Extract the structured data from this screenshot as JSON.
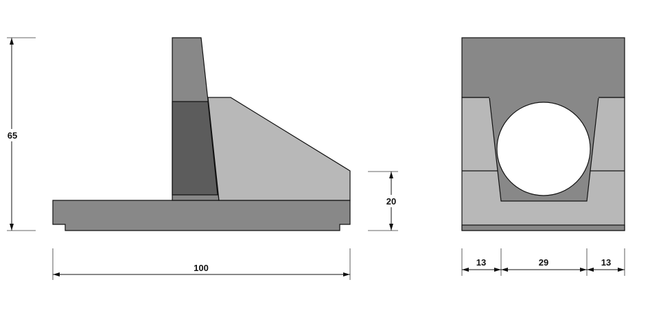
{
  "colors": {
    "mid_gray": "#888888",
    "dark_gray": "#5c5c5c",
    "light_gray": "#b8b8b8",
    "line": "#111111"
  },
  "side_view": {
    "dimensions": {
      "height": "65",
      "footing_height": "20",
      "width": "100"
    }
  },
  "front_view": {
    "dimensions": {
      "left": "13",
      "center": "29",
      "right": "13"
    }
  }
}
